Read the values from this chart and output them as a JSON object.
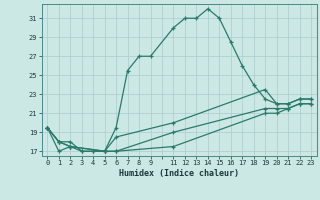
{
  "xlabel": "Humidex (Indice chaleur)",
  "bg_color": "#cce8e4",
  "grid_color": "#aacccc",
  "line_color": "#2a7a6a",
  "xlim": [
    -0.5,
    23.5
  ],
  "ylim": [
    16.5,
    32.5
  ],
  "yticks": [
    17,
    19,
    21,
    23,
    25,
    27,
    29,
    31
  ],
  "xtick_labels": [
    "0",
    "1",
    "2",
    "3",
    "4",
    "5",
    "6",
    "7",
    "8",
    "9",
    "",
    "11",
    "12",
    "13",
    "14",
    "15",
    "16",
    "17",
    "18",
    "19",
    "20",
    "21",
    "22",
    "23"
  ],
  "xtick_pos": [
    0,
    1,
    2,
    3,
    4,
    5,
    6,
    7,
    8,
    9,
    10,
    11,
    12,
    13,
    14,
    15,
    16,
    17,
    18,
    19,
    20,
    21,
    22,
    23
  ],
  "curve1_x": [
    0,
    1,
    2,
    3,
    4,
    5,
    6,
    7,
    8,
    9,
    11,
    12,
    13,
    14,
    15,
    16,
    17,
    18,
    19,
    20,
    21,
    22,
    23
  ],
  "curve1_y": [
    19.5,
    17.0,
    17.5,
    17.0,
    17.0,
    17.0,
    19.5,
    25.5,
    27.0,
    27.0,
    30.0,
    31.0,
    31.0,
    32.0,
    31.0,
    28.5,
    26.0,
    24.0,
    22.5,
    22.0,
    22.0,
    22.5,
    22.5
  ],
  "curve2_x": [
    0,
    1,
    2,
    3,
    4,
    5,
    6,
    11,
    19,
    20,
    21,
    22,
    23
  ],
  "curve2_y": [
    19.5,
    18.0,
    18.0,
    17.0,
    17.0,
    17.0,
    18.5,
    20.0,
    23.5,
    22.0,
    22.0,
    22.5,
    22.5
  ],
  "curve3_x": [
    0,
    1,
    2,
    5,
    6,
    11,
    19,
    20,
    21,
    22,
    23
  ],
  "curve3_y": [
    19.5,
    18.0,
    17.5,
    17.0,
    17.0,
    19.0,
    21.5,
    21.5,
    21.5,
    22.0,
    22.0
  ],
  "curve4_x": [
    0,
    1,
    2,
    5,
    6,
    11,
    19,
    20,
    21,
    22,
    23
  ],
  "curve4_y": [
    19.5,
    18.0,
    17.5,
    17.0,
    17.0,
    17.5,
    21.0,
    21.0,
    21.5,
    22.0,
    22.0
  ]
}
